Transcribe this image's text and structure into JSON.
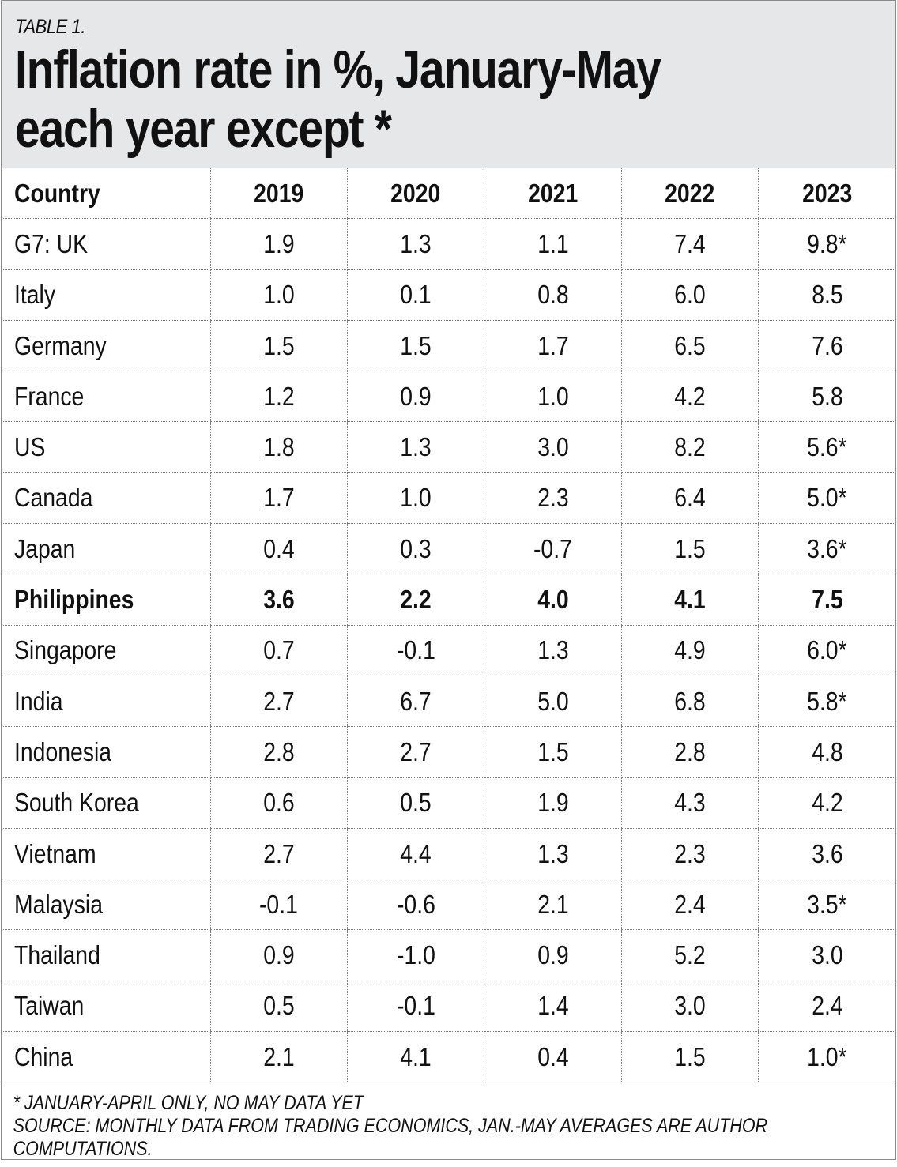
{
  "table_label": "TABLE 1.",
  "title_line1": "Inflation rate in %, January-May",
  "title_line2": "each year except *",
  "header": {
    "country": "Country",
    "years": [
      "2019",
      "2020",
      "2021",
      "2022",
      "2023"
    ]
  },
  "rows": [
    {
      "country": "G7: UK",
      "values": [
        "1.9",
        "1.3",
        "1.1",
        "7.4",
        "9.8*"
      ]
    },
    {
      "country": "Italy",
      "values": [
        "1.0",
        "0.1",
        "0.8",
        "6.0",
        "8.5"
      ]
    },
    {
      "country": "Germany",
      "values": [
        "1.5",
        "1.5",
        "1.7",
        "6.5",
        "7.6"
      ]
    },
    {
      "country": "France",
      "values": [
        "1.2",
        "0.9",
        "1.0",
        "4.2",
        "5.8"
      ]
    },
    {
      "country": "US",
      "values": [
        "1.8",
        "1.3",
        "3.0",
        "8.2",
        "5.6*"
      ]
    },
    {
      "country": "Canada",
      "values": [
        "1.7",
        "1.0",
        "2.3",
        "6.4",
        "5.0*"
      ]
    },
    {
      "country": "Japan",
      "values": [
        "0.4",
        "0.3",
        "-0.7",
        "1.5",
        "3.6*"
      ]
    },
    {
      "country": "Philippines",
      "values": [
        "3.6",
        "2.2",
        "4.0",
        "4.1",
        "7.5"
      ],
      "bold": true
    },
    {
      "country": "Singapore",
      "values": [
        "0.7",
        "-0.1",
        "1.3",
        "4.9",
        "6.0*"
      ]
    },
    {
      "country": "India",
      "values": [
        "2.7",
        "6.7",
        "5.0",
        "6.8",
        "5.8*"
      ]
    },
    {
      "country": "Indonesia",
      "values": [
        "2.8",
        "2.7",
        "1.5",
        "2.8",
        "4.8"
      ]
    },
    {
      "country": "South Korea",
      "values": [
        "0.6",
        "0.5",
        "1.9",
        "4.3",
        "4.2"
      ]
    },
    {
      "country": "Vietnam",
      "values": [
        "2.7",
        "4.4",
        "1.3",
        "2.3",
        "3.6"
      ]
    },
    {
      "country": "Malaysia",
      "values": [
        "-0.1",
        "-0.6",
        "2.1",
        "2.4",
        "3.5*"
      ]
    },
    {
      "country": "Thailand",
      "values": [
        "0.9",
        "-1.0",
        "0.9",
        "5.2",
        "3.0"
      ]
    },
    {
      "country": "Taiwan",
      "values": [
        "0.5",
        "-0.1",
        "1.4",
        "3.0",
        "2.4"
      ]
    },
    {
      "country": "China",
      "values": [
        "2.1",
        "4.1",
        "0.4",
        "1.5",
        "1.0*"
      ]
    }
  ],
  "notes": [
    "* JANUARY-APRIL ONLY, NO MAY DATA YET",
    "SOURCE: MONTHLY DATA FROM TRADING ECONOMICS, JAN.-MAY AVERAGES ARE AUTHOR",
    "COMPUTATIONS."
  ]
}
